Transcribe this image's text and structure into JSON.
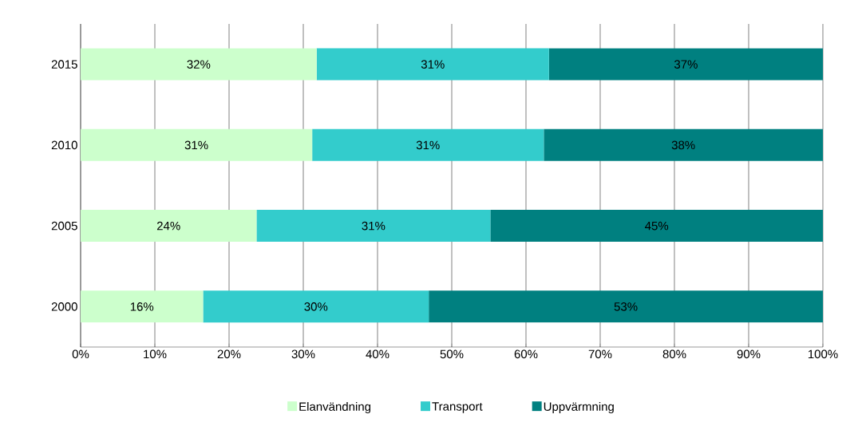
{
  "chart_data": {
    "type": "bar",
    "orientation": "horizontal",
    "stacked": true,
    "categories": [
      "2015",
      "2010",
      "2005",
      "2000"
    ],
    "series": [
      {
        "name": "Elanvändning",
        "color": "#ccffcc",
        "values": [
          31.8,
          31.2,
          23.7,
          16.5
        ],
        "value_labels": [
          "32%",
          "31%",
          "24%",
          "16%"
        ]
      },
      {
        "name": "Transport",
        "color": "#33cccc",
        "values": [
          31.3,
          31.2,
          31.5,
          30.4
        ],
        "value_labels": [
          "31%",
          "31%",
          "31%",
          "30%"
        ]
      },
      {
        "name": "Uppvärmning",
        "color": "#008080",
        "values": [
          36.9,
          37.6,
          44.8,
          53.1
        ],
        "value_labels": [
          "37%",
          "38%",
          "45%",
          "53%"
        ]
      }
    ],
    "xlim": [
      0,
      100
    ],
    "xticks": [
      {
        "value": 0,
        "label": "0%"
      },
      {
        "value": 10,
        "label": "10%"
      },
      {
        "value": 20,
        "label": "20%"
      },
      {
        "value": 30,
        "label": "30%"
      },
      {
        "value": 40,
        "label": "40%"
      },
      {
        "value": 50,
        "label": "50%"
      },
      {
        "value": 60,
        "label": "60%"
      },
      {
        "value": 70,
        "label": "70%"
      },
      {
        "value": 80,
        "label": "80%"
      },
      {
        "value": 90,
        "label": "90%"
      },
      {
        "value": 100,
        "label": "100%"
      }
    ],
    "grid": "x",
    "legend": "bottom"
  }
}
